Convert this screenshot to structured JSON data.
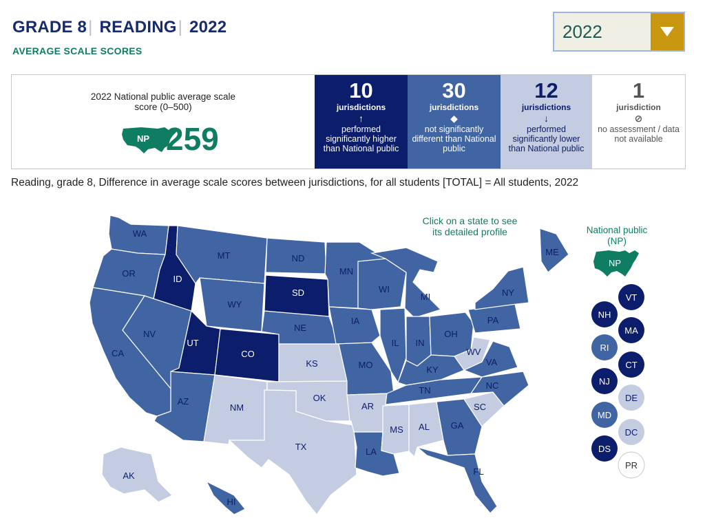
{
  "header": {
    "grade": "GRADE 8",
    "subject": "READING",
    "year": "2022",
    "sep": "|",
    "subtitle": "AVERAGE SCALE SCORES"
  },
  "year_select": {
    "value": "2022"
  },
  "national": {
    "label": "2022 National public average scale score (0–500)",
    "badge": "NP",
    "score": "259"
  },
  "stats": {
    "higher": {
      "count": "10",
      "unit": "jurisdictions",
      "symbol": "↑",
      "desc": "performed significantly higher than National public"
    },
    "same": {
      "count": "30",
      "unit": "jurisdictions",
      "symbol": "◆",
      "desc": "not significantly different than National public"
    },
    "lower": {
      "count": "12",
      "unit": "jurisdictions",
      "symbol": "↓",
      "desc": "performed significantly lower than National public"
    },
    "none": {
      "count": "1",
      "unit": "jurisdiction",
      "symbol": "⊘",
      "desc": "no assessment / data not available"
    }
  },
  "caption": "Reading, grade 8, Difference in average scale scores between jurisdictions, for all students [TOTAL] = All students, 2022",
  "click_hint": "Click on a state to see its detailed profile",
  "np_legend": {
    "label": "National public (NP)",
    "badge": "NP"
  },
  "colors": {
    "higher": "#0b1d6b",
    "same": "#4164a3",
    "lower": "#c3cce0",
    "none": "#ffffff",
    "np": "#0f7d62",
    "accent": "#c9970f"
  },
  "states": [
    {
      "abbr": "WA",
      "status": "same"
    },
    {
      "abbr": "OR",
      "status": "same"
    },
    {
      "abbr": "CA",
      "status": "same"
    },
    {
      "abbr": "ID",
      "status": "higher"
    },
    {
      "abbr": "NV",
      "status": "same"
    },
    {
      "abbr": "MT",
      "status": "same"
    },
    {
      "abbr": "WY",
      "status": "same"
    },
    {
      "abbr": "UT",
      "status": "higher"
    },
    {
      "abbr": "AZ",
      "status": "same"
    },
    {
      "abbr": "CO",
      "status": "higher"
    },
    {
      "abbr": "NM",
      "status": "lower"
    },
    {
      "abbr": "ND",
      "status": "same"
    },
    {
      "abbr": "SD",
      "status": "higher"
    },
    {
      "abbr": "NE",
      "status": "same"
    },
    {
      "abbr": "KS",
      "status": "lower"
    },
    {
      "abbr": "OK",
      "status": "lower"
    },
    {
      "abbr": "TX",
      "status": "lower"
    },
    {
      "abbr": "MN",
      "status": "same"
    },
    {
      "abbr": "IA",
      "status": "same"
    },
    {
      "abbr": "MO",
      "status": "same"
    },
    {
      "abbr": "AR",
      "status": "lower"
    },
    {
      "abbr": "LA",
      "status": "same"
    },
    {
      "abbr": "WI",
      "status": "same"
    },
    {
      "abbr": "IL",
      "status": "same"
    },
    {
      "abbr": "MI",
      "status": "same"
    },
    {
      "abbr": "IN",
      "status": "same"
    },
    {
      "abbr": "OH",
      "status": "same"
    },
    {
      "abbr": "KY",
      "status": "same"
    },
    {
      "abbr": "TN",
      "status": "same"
    },
    {
      "abbr": "MS",
      "status": "lower"
    },
    {
      "abbr": "AL",
      "status": "lower"
    },
    {
      "abbr": "GA",
      "status": "same"
    },
    {
      "abbr": "FL",
      "status": "same"
    },
    {
      "abbr": "SC",
      "status": "lower"
    },
    {
      "abbr": "NC",
      "status": "same"
    },
    {
      "abbr": "VA",
      "status": "same"
    },
    {
      "abbr": "WV",
      "status": "lower"
    },
    {
      "abbr": "PA",
      "status": "same"
    },
    {
      "abbr": "NY",
      "status": "same"
    },
    {
      "abbr": "ME",
      "status": "same"
    },
    {
      "abbr": "AK",
      "status": "lower"
    },
    {
      "abbr": "HI",
      "status": "same"
    }
  ],
  "small_jurisdictions": [
    {
      "abbr": "VT",
      "status": "higher"
    },
    {
      "abbr": "NH",
      "status": "higher"
    },
    {
      "abbr": "MA",
      "status": "higher"
    },
    {
      "abbr": "RI",
      "status": "same"
    },
    {
      "abbr": "CT",
      "status": "higher"
    },
    {
      "abbr": "NJ",
      "status": "higher"
    },
    {
      "abbr": "DE",
      "status": "lower"
    },
    {
      "abbr": "MD",
      "status": "same"
    },
    {
      "abbr": "DC",
      "status": "lower"
    },
    {
      "abbr": "DS",
      "status": "higher"
    },
    {
      "abbr": "PR",
      "status": "none"
    }
  ]
}
